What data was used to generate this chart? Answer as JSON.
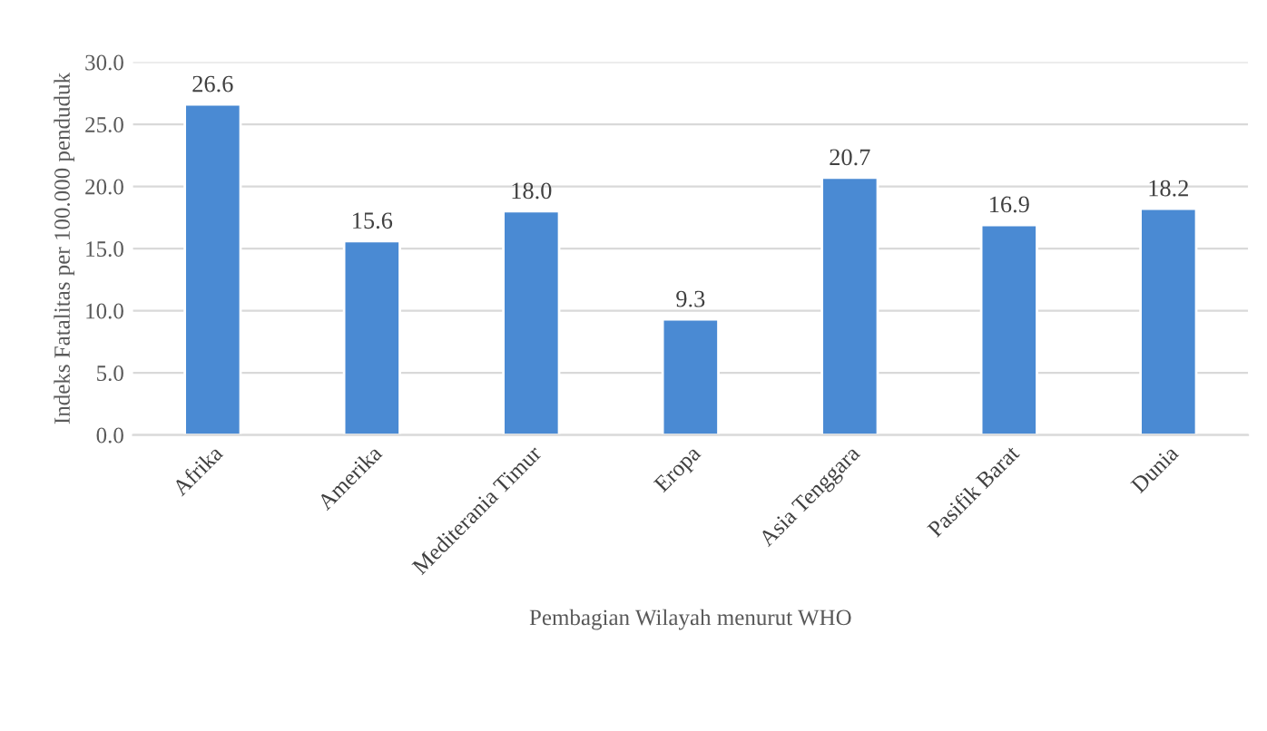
{
  "chart_data": {
    "type": "bar",
    "xlabel": "Pembagian Wilayah menurut WHO",
    "ylabel": "Indeks Fatalitas per 100.000 penduduk",
    "categories": [
      "Afrika",
      "Amerika",
      "Mediterania Timur",
      "Eropa",
      "Asia Tenggara",
      "Pasifik Barat",
      "Dunia"
    ],
    "values": [
      26.6,
      15.6,
      18.0,
      9.3,
      20.7,
      16.9,
      18.2
    ],
    "value_labels": [
      "26.6",
      "15.6",
      "18.0",
      "9.3",
      "20.7",
      "16.9",
      "18.2"
    ],
    "color": "#4a8ad3",
    "ylim": [
      0,
      30
    ],
    "yticks": [
      {
        "value": 0,
        "label": "0.0"
      },
      {
        "value": 5,
        "label": "5.0"
      },
      {
        "value": 10,
        "label": "10.0"
      },
      {
        "value": 15,
        "label": "15.0"
      },
      {
        "value": 20,
        "label": "20.0"
      },
      {
        "value": 25,
        "label": "25.0"
      },
      {
        "value": 30,
        "label": "30.0"
      }
    ],
    "grid": "y",
    "legend": false
  }
}
